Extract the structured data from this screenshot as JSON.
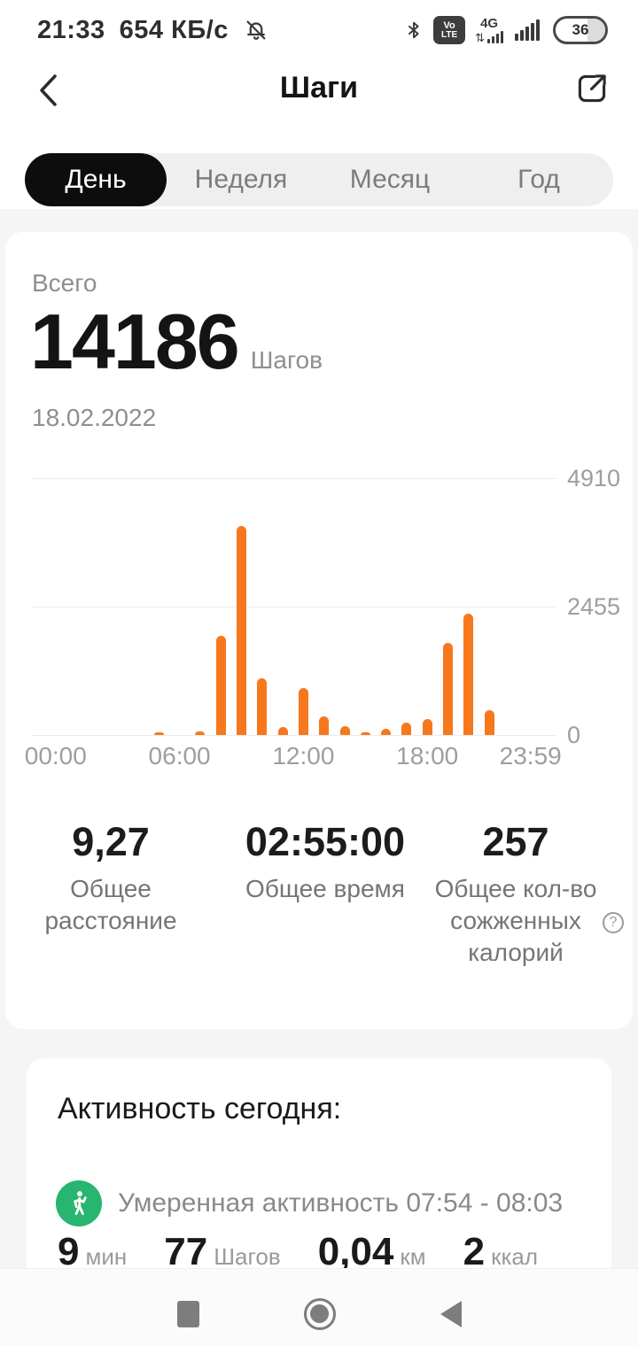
{
  "status_bar": {
    "time": "21:33",
    "network_speed": "654 КБ/с",
    "volte_top": "Vo",
    "volte_bottom": "LTE",
    "network_type": "4G",
    "battery_percent": "36"
  },
  "header": {
    "title": "Шаги"
  },
  "tabs": {
    "items": [
      {
        "label": "День",
        "active": true
      },
      {
        "label": "Неделя",
        "active": false
      },
      {
        "label": "Месяц",
        "active": false
      },
      {
        "label": "Год",
        "active": false
      }
    ]
  },
  "summary": {
    "label": "Всего",
    "steps": "14186",
    "unit": "Шагов",
    "date": "18.02.2022"
  },
  "chart_data": {
    "type": "bar",
    "x_unit": "hour_of_day",
    "hours": [
      0,
      1,
      2,
      3,
      4,
      5,
      6,
      7,
      8,
      9,
      10,
      11,
      12,
      13,
      14,
      15,
      16,
      17,
      18,
      19,
      20,
      21,
      22,
      23
    ],
    "values": [
      0,
      0,
      0,
      0,
      0,
      50,
      0,
      60,
      1900,
      4000,
      1080,
      160,
      900,
      360,
      175,
      45,
      120,
      240,
      300,
      1760,
      2320,
      480,
      0,
      0
    ],
    "x_tick_labels": [
      "00:00",
      "06:00",
      "12:00",
      "18:00",
      "23:59"
    ],
    "x_tick_hours": [
      0,
      6,
      12,
      18,
      23
    ],
    "y_tick_labels": [
      "4910",
      "2455",
      "0"
    ],
    "y_ticks": [
      4910,
      2455,
      0
    ],
    "ylim": [
      0,
      4910
    ],
    "bar_color": "#F7781C",
    "grid": true
  },
  "stats": {
    "help_glyph": "?",
    "items": [
      {
        "value": "9,27",
        "label": "Общее расстояние"
      },
      {
        "value": "02:55:00",
        "label": "Общее время"
      },
      {
        "value": "257",
        "label": "Общее кол-во сожженных калорий"
      }
    ]
  },
  "activity": {
    "title": "Активность сегодня:",
    "entries": [
      {
        "icon": "walking-person",
        "description": "Умеренная активность 07:54 - 08:03",
        "metrics": [
          {
            "value": "9",
            "unit": "мин"
          },
          {
            "value": "77",
            "unit": "Шагов"
          },
          {
            "value": "0,04",
            "unit": "км"
          },
          {
            "value": "2",
            "unit": "ккал"
          }
        ]
      }
    ]
  },
  "colors": {
    "accent_orange": "#F7781C",
    "activity_green": "#27B570",
    "tab_active_bg": "#0D0D0D"
  }
}
